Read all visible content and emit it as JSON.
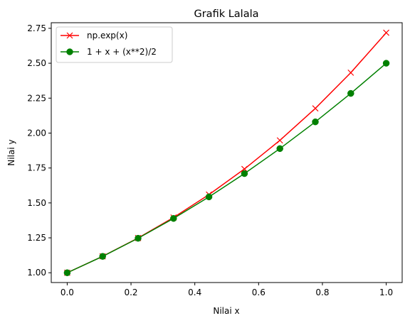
{
  "chart_data": {
    "type": "line",
    "title": "Grafik Lalala",
    "xlabel": "Nilai x",
    "ylabel": "Nilai y",
    "xlim": [
      -0.05,
      1.05
    ],
    "ylim": [
      0.93,
      2.79
    ],
    "xticks": [
      0.0,
      0.2,
      0.4,
      0.6,
      0.8,
      1.0
    ],
    "xtick_labels": [
      "0.0",
      "0.2",
      "0.4",
      "0.6",
      "0.8",
      "1.0"
    ],
    "yticks": [
      1.0,
      1.25,
      1.5,
      1.75,
      2.0,
      2.25,
      2.5,
      2.75
    ],
    "ytick_labels": [
      "1.00",
      "1.25",
      "1.50",
      "1.75",
      "2.00",
      "2.25",
      "2.50",
      "2.75"
    ],
    "grid": false,
    "legend_position": "top-left",
    "x": [
      0.0,
      0.1111,
      0.2222,
      0.3333,
      0.4444,
      0.5556,
      0.6667,
      0.7778,
      0.8889,
      1.0
    ],
    "series": [
      {
        "name": "np.exp(x)",
        "color": "#ff0000",
        "marker": "x",
        "values": [
          1.0,
          1.1175,
          1.2488,
          1.3956,
          1.5596,
          1.7429,
          1.9477,
          2.1766,
          2.4324,
          2.7183
        ]
      },
      {
        "name": "1 + x + (x**2)/2",
        "color": "#008000",
        "marker": "o",
        "values": [
          1.0,
          1.1173,
          1.2469,
          1.3889,
          1.5432,
          1.7099,
          1.8889,
          2.0802,
          2.284,
          2.5
        ]
      }
    ]
  }
}
